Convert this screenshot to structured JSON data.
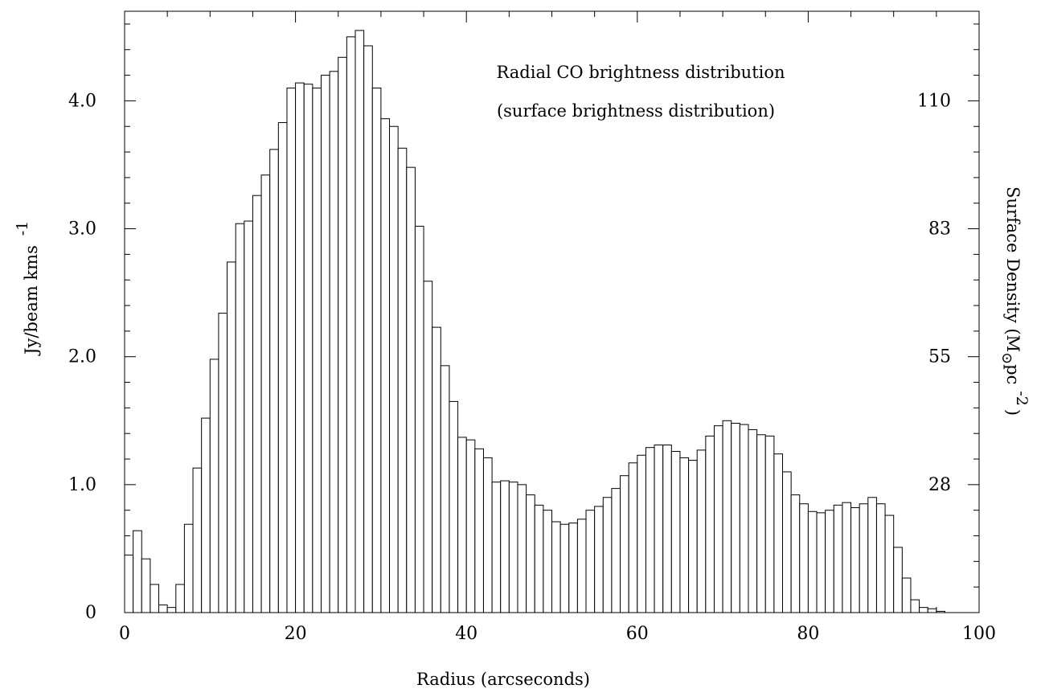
{
  "chart_data": {
    "type": "bar",
    "title": "Radial CO brightness distribution",
    "subtitle": "(surface brightness distribution)",
    "xlabel": "Radius  (arcseconds)",
    "ylabel": {
      "main": "Jy/beam  kms",
      "sup": "-1"
    },
    "y2label": {
      "main": "Surface Density  (M",
      "sub": "⊙",
      "mid": "pc",
      "sup": "-2",
      "end": ")"
    },
    "xlim": [
      0,
      100
    ],
    "ylim": [
      0,
      4.7
    ],
    "x_ticks": [
      0,
      20,
      40,
      60,
      80,
      100
    ],
    "x_tick_labels": [
      "0",
      "20",
      "40",
      "60",
      "80",
      "100"
    ],
    "y_ticks": [
      0,
      1,
      2,
      3,
      4
    ],
    "y_tick_labels": [
      "0",
      "1.0",
      "2.0",
      "3.0",
      "4.0"
    ],
    "y2_ticks": [
      1.0,
      2.0,
      3.0,
      4.0
    ],
    "y2_tick_labels": [
      "28",
      "55",
      "83",
      "110"
    ],
    "bin_width": 1,
    "bin_start": 0,
    "values": [
      0.45,
      0.64,
      0.42,
      0.22,
      0.06,
      0.04,
      0.22,
      0.69,
      1.13,
      1.52,
      1.98,
      2.34,
      2.74,
      3.04,
      3.06,
      3.26,
      3.42,
      3.62,
      3.83,
      4.1,
      4.14,
      4.13,
      4.1,
      4.2,
      4.23,
      4.34,
      4.5,
      4.55,
      4.43,
      4.1,
      3.86,
      3.8,
      3.63,
      3.48,
      3.02,
      2.59,
      2.23,
      1.93,
      1.65,
      1.37,
      1.35,
      1.28,
      1.21,
      1.02,
      1.03,
      1.02,
      1.0,
      0.92,
      0.84,
      0.8,
      0.71,
      0.69,
      0.7,
      0.73,
      0.8,
      0.83,
      0.9,
      0.97,
      1.07,
      1.17,
      1.23,
      1.29,
      1.31,
      1.31,
      1.26,
      1.21,
      1.19,
      1.27,
      1.38,
      1.46,
      1.5,
      1.48,
      1.47,
      1.43,
      1.39,
      1.38,
      1.24,
      1.1,
      0.92,
      0.85,
      0.79,
      0.78,
      0.8,
      0.84,
      0.86,
      0.82,
      0.85,
      0.9,
      0.85,
      0.76,
      0.51,
      0.27,
      0.1,
      0.04,
      0.03,
      0.01
    ]
  }
}
